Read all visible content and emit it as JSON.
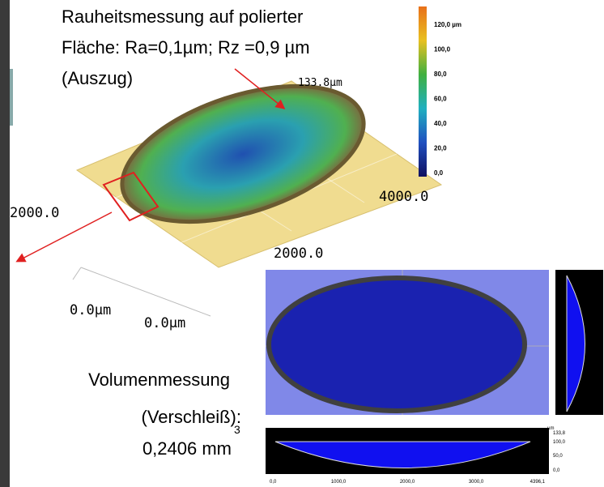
{
  "annotation_top": [
    "Rauheitsmessung auf polierter",
    "Fläche: Ra=0,1µm; Rz =0,9 µm",
    "(Auszug)"
  ],
  "plot_3d": {
    "z_max": "133.8µm",
    "y_end": "2000.0",
    "x_end": "4000.0",
    "mid_label": "2000.0",
    "z_origin": "0.0µm",
    "x_origin": "0.0µm"
  },
  "colorbar": {
    "labels": [
      "120,0 µm",
      "100,0",
      "80,0",
      "60,0",
      "40,0",
      "20,0",
      "0,0"
    ]
  },
  "annotation_volume": {
    "lines": [
      "Volumenmessung",
      "(Verschleiß):"
    ],
    "value": "0,2406 mm",
    "exponent": "3"
  },
  "profile": {
    "unit": "µm",
    "y_labels": [
      "133,8",
      "100,0",
      "50,0",
      "0,0"
    ],
    "x_labels": [
      "0,0",
      "1000,0",
      "2000,0",
      "3000,0",
      "4396,1"
    ]
  }
}
